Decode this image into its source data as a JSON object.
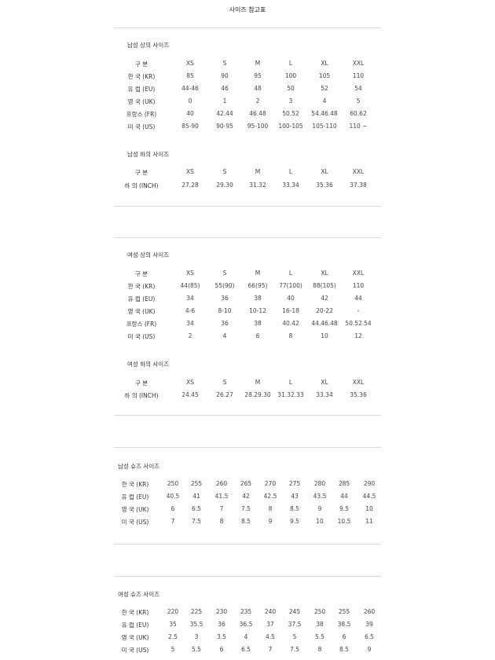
{
  "title": "사이즈 참고표",
  "sections": [
    {
      "title": "남성 상의 사이즈",
      "rows": [
        [
          "구 분",
          "XS",
          "S",
          "M",
          "L",
          "XL",
          "XXL"
        ],
        [
          "한 국 (KR)",
          "85",
          "90",
          "95",
          "100",
          "105",
          "110"
        ],
        [
          "유 럽 (EU)",
          "44-46",
          "46",
          "48",
          "50",
          "52",
          "54"
        ],
        [
          "영 국 (UK)",
          "0",
          "1",
          "2",
          "3",
          "4",
          "5"
        ],
        [
          "프랑스 (FR)",
          "40",
          "42.44",
          "46.48",
          "50.52",
          "54.46.48",
          "60.62"
        ],
        [
          "미 국 (US)",
          "85-90",
          "90-95",
          "95-100",
          "100-105",
          "105-110",
          "110 ~"
        ]
      ]
    },
    {
      "title": "남성 하의 사이즈",
      "rows": [
        [
          "구 분",
          "XS",
          "S",
          "M",
          "L",
          "XL",
          "XXL"
        ],
        [
          "하 의 (INCH)",
          "27.28",
          "29.30",
          "31.32",
          "33.34",
          "35.36",
          "37.38"
        ]
      ]
    },
    {
      "title": "여성 상의 사이즈",
      "rows": [
        [
          "구 분",
          "XS",
          "S",
          "M",
          "L",
          "XL",
          "XXL"
        ],
        [
          "한 국 (KR)",
          "44(85)",
          "55(90)",
          "66(95)",
          "77(100)",
          "88(105)",
          "110"
        ],
        [
          "유 럽 (EU)",
          "34",
          "36",
          "38",
          "40",
          "42",
          "44"
        ],
        [
          "영 국 (UK)",
          "4-6",
          "8-10",
          "10-12",
          "16-18",
          "20-22",
          "-"
        ],
        [
          "프랑스 (FR)",
          "34",
          "36",
          "38",
          "40.42",
          "44.46.48",
          "50.52.54"
        ],
        [
          "미 국 (US)",
          "2",
          "4",
          "6",
          "8",
          "10",
          "12"
        ]
      ]
    },
    {
      "title": "여성 하의 사이즈",
      "rows": [
        [
          "구 분",
          "XS",
          "S",
          "M",
          "L",
          "XL",
          "XXL"
        ],
        [
          "하 의 (INCH)",
          "24.45",
          "26.27",
          "28.29.30",
          "31.32.33",
          "33.34",
          "35.36"
        ]
      ]
    },
    {
      "title": "남성 슈즈 사이즈",
      "rows": [
        [
          "한 국 (KR)",
          "250",
          "255",
          "260",
          "265",
          "270",
          "275",
          "280",
          "285",
          "290"
        ],
        [
          "유 럽 (EU)",
          "40.5",
          "41",
          "41.5",
          "42",
          "42.5",
          "43",
          "43.5",
          "44",
          "44.5"
        ],
        [
          "영 국 (UK)",
          "6",
          "6.5",
          "7",
          "7.5",
          "8",
          "8.5",
          "9",
          "9.5",
          "10"
        ],
        [
          "미 국 (US)",
          "7",
          "7.5",
          "8",
          "8.5",
          "9",
          "9.5",
          "10",
          "10.5",
          "11"
        ]
      ]
    },
    {
      "title": "여성 슈즈 사이즈",
      "rows": [
        [
          "한 국 (KR)",
          "220",
          "225",
          "230",
          "235",
          "240",
          "245",
          "250",
          "255",
          "260"
        ],
        [
          "유 럽 (EU)",
          "35",
          "35.5",
          "36",
          "36.5",
          "37",
          "37.5",
          "38",
          "38.5",
          "39"
        ],
        [
          "영 국 (UK)",
          "2.5",
          "3",
          "3.5",
          "4",
          "4.5",
          "5",
          "5.5",
          "6",
          "6.5"
        ],
        [
          "미 국 (US)",
          "5",
          "5.5",
          "6",
          "6.5",
          "7",
          "7.5",
          "8",
          "8.5",
          "9"
        ]
      ]
    }
  ]
}
